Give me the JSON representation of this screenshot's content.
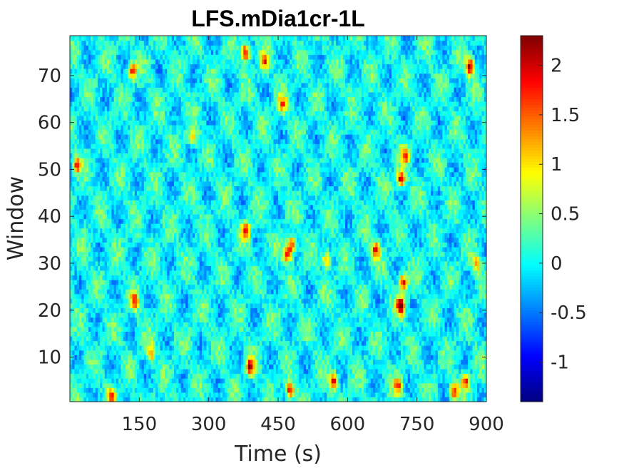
{
  "chart_data": {
    "type": "heatmap",
    "title": "LFS.mDia1cr-1L",
    "xlabel": "Time (s)",
    "ylabel": "Window",
    "xlim": [
      0,
      900
    ],
    "ylim": [
      0.5,
      78.5
    ],
    "x_ticks": [
      150,
      300,
      450,
      600,
      750,
      900
    ],
    "y_ticks": [
      10,
      20,
      30,
      40,
      50,
      60,
      70
    ],
    "time_step_s": 5,
    "n_windows": 78,
    "n_timepoints": 180,
    "colormap": "jet",
    "colorbar": {
      "clim": [
        -1.4,
        2.3
      ],
      "ticks": [
        -1,
        -0.5,
        0,
        0.5,
        1,
        1.5,
        2
      ],
      "tick_labels": [
        "-1",
        "-0.5",
        "0",
        "0.5",
        "1",
        "1.5",
        "2"
      ]
    },
    "background_value": 0,
    "value_range": [
      -1.4,
      2.3
    ],
    "hotspots": [
      {
        "t": 380,
        "w": 75,
        "v": 2.2
      },
      {
        "t": 420,
        "w": 73,
        "v": 1.6
      },
      {
        "t": 865,
        "w": 72,
        "v": 2.1
      },
      {
        "t": 135,
        "w": 71,
        "v": 1.8
      },
      {
        "t": 460,
        "w": 64,
        "v": 1.4
      },
      {
        "t": 265,
        "w": 57,
        "v": 1.2
      },
      {
        "t": 15,
        "w": 51,
        "v": 1.6
      },
      {
        "t": 715,
        "w": 48,
        "v": 2.1
      },
      {
        "t": 725,
        "w": 53,
        "v": 1.5
      },
      {
        "t": 380,
        "w": 37,
        "v": 2.0
      },
      {
        "t": 480,
        "w": 34,
        "v": 1.7
      },
      {
        "t": 470,
        "w": 32,
        "v": 2.0
      },
      {
        "t": 555,
        "w": 31,
        "v": 1.5
      },
      {
        "t": 660,
        "w": 33,
        "v": 1.8
      },
      {
        "t": 720,
        "w": 26,
        "v": 2.0
      },
      {
        "t": 715,
        "w": 21,
        "v": 2.3
      },
      {
        "t": 880,
        "w": 30,
        "v": 1.4
      },
      {
        "t": 140,
        "w": 22,
        "v": 1.5
      },
      {
        "t": 390,
        "w": 8,
        "v": 2.1
      },
      {
        "t": 475,
        "w": 3,
        "v": 2.0
      },
      {
        "t": 570,
        "w": 5,
        "v": 2.0
      },
      {
        "t": 710,
        "w": 4,
        "v": 1.6
      },
      {
        "t": 855,
        "w": 5,
        "v": 1.7
      },
      {
        "t": 830,
        "w": 3,
        "v": 1.8
      },
      {
        "t": 90,
        "w": 2,
        "v": 1.5
      },
      {
        "t": 175,
        "w": 11,
        "v": 1.3
      }
    ]
  }
}
